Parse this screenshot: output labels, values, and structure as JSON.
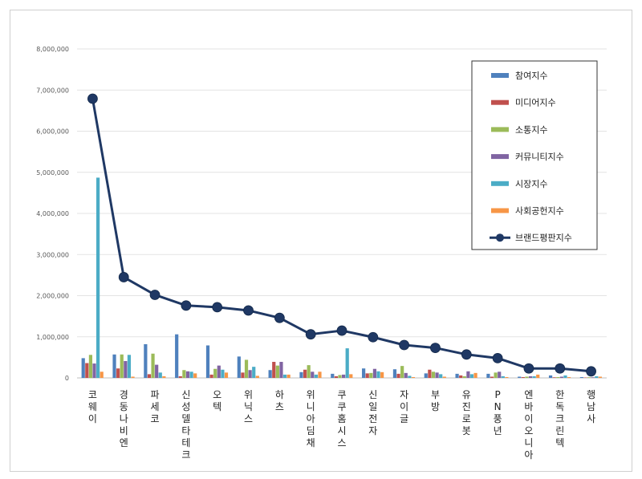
{
  "chart_data": {
    "type": "bar",
    "title": "",
    "xlabel": "",
    "ylabel": "",
    "ylim": [
      0,
      8000000
    ],
    "yticks": [
      "0",
      "1,000,000",
      "2,000,000",
      "3,000,000",
      "4,000,000",
      "5,000,000",
      "6,000,000",
      "7,000,000",
      "8,000,000"
    ],
    "grid": true,
    "legend_position": "top-right",
    "categories": [
      "코웨이",
      "경동나비엔",
      "파세코",
      "신성델타테크",
      "오텍",
      "위닉스",
      "하츠",
      "위니아딤채",
      "쿠쿠홈시스",
      "신일전자",
      "자이글",
      "부방",
      "유진로봇",
      "PN풍년",
      "엔바이오니아",
      "한독크린텍",
      "행남사"
    ],
    "series": [
      {
        "name": "참여지수",
        "kind": "bar",
        "color": "#4F81BD",
        "values": [
          480000,
          570000,
          820000,
          1060000,
          790000,
          520000,
          190000,
          140000,
          100000,
          230000,
          210000,
          110000,
          100000,
          100000,
          30000,
          60000,
          20000
        ]
      },
      {
        "name": "미디어지수",
        "kind": "bar",
        "color": "#C0504D",
        "values": [
          360000,
          230000,
          90000,
          40000,
          80000,
          130000,
          390000,
          200000,
          40000,
          110000,
          100000,
          200000,
          60000,
          30000,
          20000,
          15000,
          10000
        ]
      },
      {
        "name": "소통지수",
        "kind": "bar",
        "color": "#9BBB59",
        "values": [
          560000,
          570000,
          590000,
          190000,
          220000,
          440000,
          300000,
          310000,
          70000,
          120000,
          290000,
          150000,
          40000,
          130000,
          30000,
          20000,
          15000
        ]
      },
      {
        "name": "커뮤니티지수",
        "kind": "bar",
        "color": "#8064A2",
        "values": [
          350000,
          410000,
          320000,
          160000,
          300000,
          190000,
          390000,
          150000,
          80000,
          220000,
          120000,
          130000,
          160000,
          150000,
          40000,
          30000,
          15000
        ]
      },
      {
        "name": "시장지수",
        "kind": "bar",
        "color": "#4BACC6",
        "values": [
          4870000,
          560000,
          130000,
          150000,
          200000,
          270000,
          80000,
          80000,
          720000,
          160000,
          50000,
          90000,
          90000,
          40000,
          40000,
          60000,
          40000
        ]
      },
      {
        "name": "사회공헌지수",
        "kind": "bar",
        "color": "#F79646",
        "values": [
          150000,
          30000,
          40000,
          110000,
          130000,
          50000,
          80000,
          150000,
          90000,
          140000,
          20000,
          30000,
          120000,
          20000,
          80000,
          20000,
          30000
        ]
      },
      {
        "name": "브랜드평판지수",
        "kind": "line",
        "color": "#1F3864",
        "values": [
          6790000,
          2450000,
          2020000,
          1760000,
          1720000,
          1640000,
          1460000,
          1060000,
          1150000,
          990000,
          800000,
          730000,
          570000,
          480000,
          230000,
          230000,
          160000
        ]
      }
    ]
  }
}
